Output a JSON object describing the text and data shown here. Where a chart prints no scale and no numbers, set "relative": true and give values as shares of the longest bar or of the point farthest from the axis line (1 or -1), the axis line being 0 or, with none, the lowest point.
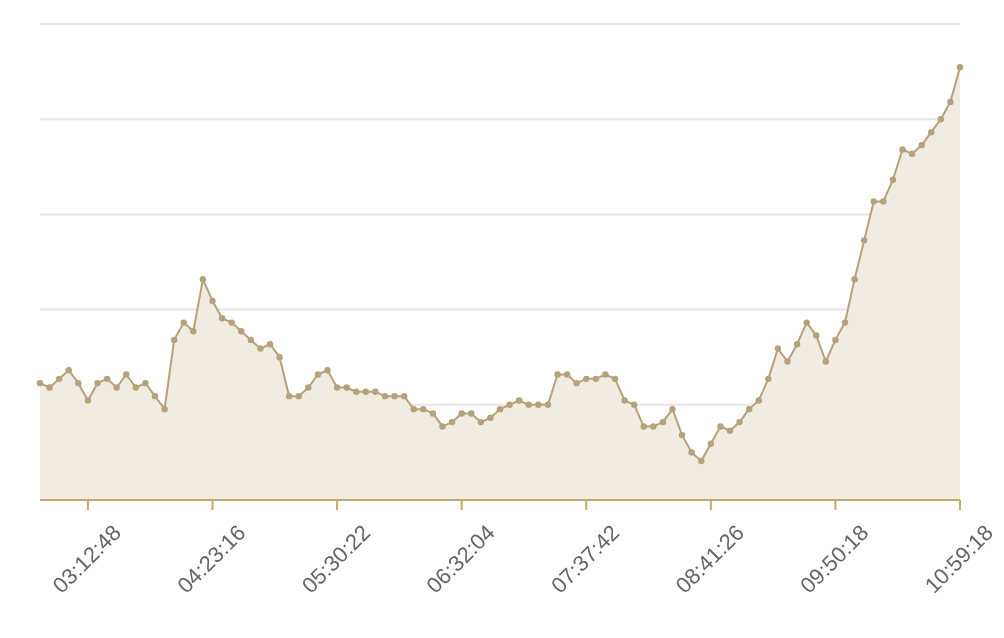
{
  "chart_data": {
    "type": "area",
    "relative": true,
    "grid": "y",
    "marker": "circle",
    "line_style": "solid",
    "categories": [
      null,
      null,
      null,
      null,
      null,
      "03:12:48",
      null,
      null,
      null,
      null,
      null,
      null,
      null,
      null,
      null,
      null,
      null,
      null,
      "04:23:16",
      null,
      null,
      null,
      null,
      null,
      null,
      null,
      null,
      null,
      null,
      null,
      null,
      "05:30:22",
      null,
      null,
      null,
      null,
      null,
      null,
      null,
      null,
      null,
      null,
      null,
      null,
      "06:32:04",
      null,
      null,
      null,
      null,
      null,
      null,
      null,
      null,
      null,
      null,
      null,
      null,
      "07:37:42",
      null,
      null,
      null,
      null,
      null,
      null,
      null,
      null,
      null,
      null,
      null,
      null,
      "08:41:26",
      null,
      null,
      null,
      null,
      null,
      null,
      null,
      null,
      null,
      null,
      null,
      null,
      "09:50:18",
      null,
      null,
      null,
      null,
      null,
      null,
      null,
      null,
      null,
      null,
      null,
      null,
      "10:59:18"
    ],
    "series": [
      {
        "color": "#b5a27a",
        "values": [
          0.27,
          0.26,
          0.28,
          0.3,
          0.27,
          0.23,
          0.27,
          0.28,
          0.26,
          0.29,
          0.26,
          0.27,
          0.24,
          0.21,
          0.37,
          0.41,
          0.39,
          0.51,
          0.46,
          0.42,
          0.41,
          0.39,
          0.37,
          0.35,
          0.36,
          0.33,
          0.24,
          0.24,
          0.26,
          0.29,
          0.3,
          0.26,
          0.26,
          0.25,
          0.25,
          0.25,
          0.24,
          0.24,
          0.24,
          0.21,
          0.21,
          0.2,
          0.17,
          0.18,
          0.2,
          0.2,
          0.18,
          0.19,
          0.21,
          0.22,
          0.23,
          0.22,
          0.22,
          0.22,
          0.29,
          0.29,
          0.27,
          0.28,
          0.28,
          0.29,
          0.28,
          0.23,
          0.22,
          0.17,
          0.17,
          0.18,
          0.21,
          0.15,
          0.11,
          0.09,
          0.13,
          0.17,
          0.16,
          0.18,
          0.21,
          0.23,
          0.28,
          0.35,
          0.32,
          0.36,
          0.41,
          0.38,
          0.32,
          0.37,
          0.41,
          0.51,
          0.6,
          0.69,
          0.69,
          0.74,
          0.81,
          0.8,
          0.82,
          0.85,
          0.88,
          0.92,
          1
        ]
      }
    ]
  }
}
